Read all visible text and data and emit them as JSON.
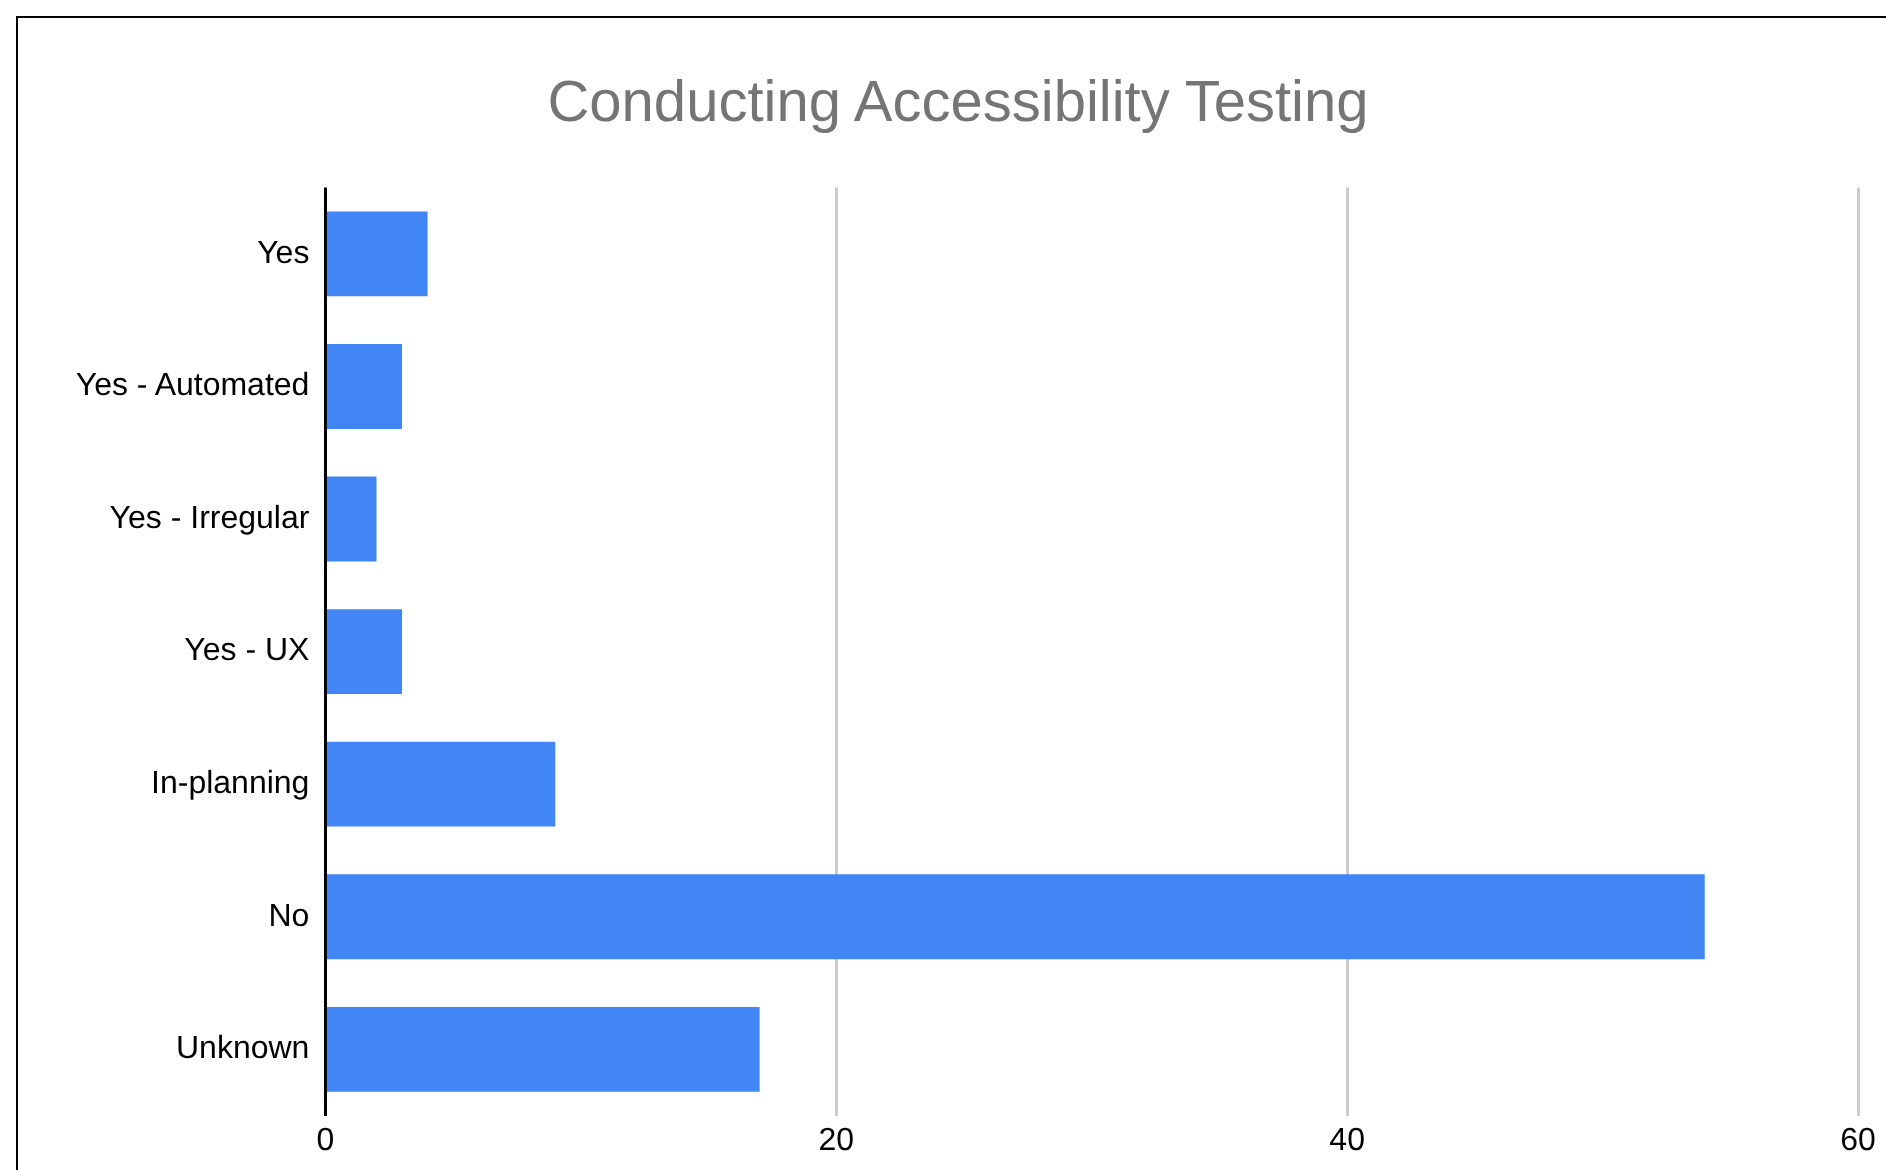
{
  "chart_data": {
    "type": "bar",
    "orientation": "horizontal",
    "title": "Conducting Accessibility Testing",
    "categories": [
      "Yes",
      "Yes - Automated",
      "Yes - Irregular",
      "Yes - UX",
      "In-planning",
      "No",
      "Unknown"
    ],
    "values": [
      4,
      3,
      2,
      3,
      9,
      54,
      17
    ],
    "color": "#4285f4",
    "xlim": [
      0,
      60
    ],
    "xticks": [
      0,
      20,
      40,
      60
    ],
    "grid": "x",
    "legend": false
  }
}
